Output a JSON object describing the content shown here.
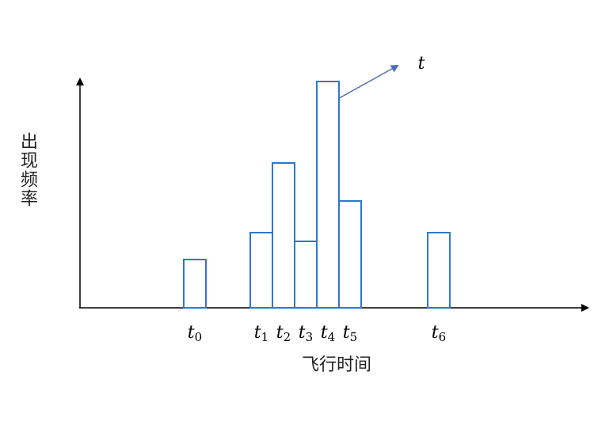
{
  "chart_data": {
    "type": "bar",
    "categories": [
      null,
      null,
      null,
      null,
      "t0",
      null,
      null,
      "t1",
      "t2",
      "t3",
      "t4",
      "t5",
      null,
      null,
      null,
      "t6"
    ],
    "values": [
      null,
      null,
      null,
      null,
      61,
      null,
      null,
      95,
      183,
      84,
      286,
      135,
      null,
      null,
      null,
      95
    ],
    "color": "#2f78c8",
    "ylim": [
      0,
      288
    ],
    "ylabel": "出现频率",
    "xlabel": "飞行时间",
    "annotation": "t"
  }
}
